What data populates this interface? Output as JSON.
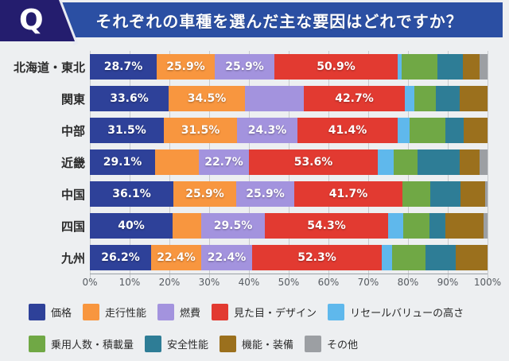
{
  "header": {
    "q_label": "Q",
    "title": "それぞれの車種を選んだ主な要因はどれですか？"
  },
  "chart_data": {
    "type": "bar",
    "variant": "horizontal-stacked-normalized",
    "title": "それぞれの車種を選んだ主な要因はどれですか？",
    "categories": [
      "北海道・東北",
      "関東",
      "中部",
      "近畿",
      "中国",
      "四国",
      "九州"
    ],
    "x_ticks": [
      "0%",
      "10%",
      "20%",
      "30%",
      "40%",
      "50%",
      "60%",
      "70%",
      "80%",
      "90%",
      "100%"
    ],
    "xlim": [
      0,
      100
    ],
    "grid": true,
    "legend_position": "bottom",
    "colors": {
      "price": "#2e4199",
      "performance": "#f8963f",
      "fuel": "#a393de",
      "design": "#e23a31",
      "resale": "#5fb8ec",
      "capacity": "#70a845",
      "safety": "#2e7d96",
      "features": "#9b701d",
      "other": "#9c9fa3"
    },
    "rows": [
      {
        "region": "北海道・東北",
        "segments": [
          {
            "key": "price",
            "label": "28.7%",
            "width": 16.8
          },
          {
            "key": "performance",
            "label": "25.9%",
            "width": 14.6
          },
          {
            "key": "fuel",
            "label": "25.9%",
            "width": 15.0
          },
          {
            "key": "design",
            "label": "50.9%",
            "width": 31.0
          },
          {
            "key": "resale",
            "label": "",
            "width": 1.0
          },
          {
            "key": "capacity",
            "label": "",
            "width": 9.0
          },
          {
            "key": "safety",
            "label": "",
            "width": 6.4
          },
          {
            "key": "features",
            "label": "",
            "width": 4.2
          },
          {
            "key": "other",
            "label": "",
            "width": 2.0
          }
        ]
      },
      {
        "region": "関東",
        "segments": [
          {
            "key": "price",
            "label": "33.6%",
            "width": 19.8
          },
          {
            "key": "performance",
            "label": "34.5%",
            "width": 19.2
          },
          {
            "key": "fuel",
            "label": "",
            "width": 14.8
          },
          {
            "key": "design",
            "label": "42.7%",
            "width": 25.4
          },
          {
            "key": "resale",
            "label": "",
            "width": 2.4
          },
          {
            "key": "capacity",
            "label": "",
            "width": 5.4
          },
          {
            "key": "safety",
            "label": "",
            "width": 6.0
          },
          {
            "key": "features",
            "label": "",
            "width": 7.0
          },
          {
            "key": "other",
            "label": "",
            "width": 0
          }
        ]
      },
      {
        "region": "中部",
        "segments": [
          {
            "key": "price",
            "label": "31.5%",
            "width": 18.6
          },
          {
            "key": "performance",
            "label": "31.5%",
            "width": 18.4
          },
          {
            "key": "fuel",
            "label": "24.3%",
            "width": 15.2
          },
          {
            "key": "design",
            "label": "41.4%",
            "width": 25.2
          },
          {
            "key": "resale",
            "label": "",
            "width": 3.0
          },
          {
            "key": "capacity",
            "label": "",
            "width": 9.0
          },
          {
            "key": "safety",
            "label": "",
            "width": 4.6
          },
          {
            "key": "features",
            "label": "",
            "width": 6.0
          },
          {
            "key": "other",
            "label": "",
            "width": 0
          }
        ]
      },
      {
        "region": "近畿",
        "segments": [
          {
            "key": "price",
            "label": "29.1%",
            "width": 16.4
          },
          {
            "key": "performance",
            "label": "",
            "width": 11.0
          },
          {
            "key": "fuel",
            "label": "22.7%",
            "width": 12.6
          },
          {
            "key": "design",
            "label": "53.6%",
            "width": 32.4
          },
          {
            "key": "resale",
            "label": "",
            "width": 4.0
          },
          {
            "key": "capacity",
            "label": "",
            "width": 6.0
          },
          {
            "key": "safety",
            "label": "",
            "width": 10.6
          },
          {
            "key": "features",
            "label": "",
            "width": 5.0
          },
          {
            "key": "other",
            "label": "",
            "width": 2.0
          }
        ]
      },
      {
        "region": "中国",
        "segments": [
          {
            "key": "price",
            "label": "36.1%",
            "width": 21.0
          },
          {
            "key": "performance",
            "label": "25.9%",
            "width": 15.8
          },
          {
            "key": "fuel",
            "label": "25.9%",
            "width": 14.6
          },
          {
            "key": "design",
            "label": "41.7%",
            "width": 27.2
          },
          {
            "key": "resale",
            "label": "",
            "width": 0
          },
          {
            "key": "capacity",
            "label": "",
            "width": 7.0
          },
          {
            "key": "safety",
            "label": "",
            "width": 7.6
          },
          {
            "key": "features",
            "label": "",
            "width": 6.2
          },
          {
            "key": "other",
            "label": "",
            "width": 0.6
          }
        ]
      },
      {
        "region": "四国",
        "segments": [
          {
            "key": "price",
            "label": "40%",
            "width": 20.8
          },
          {
            "key": "performance",
            "label": "",
            "width": 7.2
          },
          {
            "key": "fuel",
            "label": "29.5%",
            "width": 16.0
          },
          {
            "key": "design",
            "label": "54.3%",
            "width": 31.0
          },
          {
            "key": "resale",
            "label": "",
            "width": 3.8
          },
          {
            "key": "capacity",
            "label": "",
            "width": 6.6
          },
          {
            "key": "safety",
            "label": "",
            "width": 4.0
          },
          {
            "key": "features",
            "label": "",
            "width": 9.6
          },
          {
            "key": "other",
            "label": "",
            "width": 1.0
          }
        ]
      },
      {
        "region": "九州",
        "segments": [
          {
            "key": "price",
            "label": "26.2%",
            "width": 15.4
          },
          {
            "key": "performance",
            "label": "22.4%",
            "width": 12.6
          },
          {
            "key": "fuel",
            "label": "22.4%",
            "width": 12.8
          },
          {
            "key": "design",
            "label": "52.3%",
            "width": 32.6
          },
          {
            "key": "resale",
            "label": "",
            "width": 2.6
          },
          {
            "key": "capacity",
            "label": "",
            "width": 8.4
          },
          {
            "key": "safety",
            "label": "",
            "width": 7.6
          },
          {
            "key": "features",
            "label": "",
            "width": 8.0
          },
          {
            "key": "other",
            "label": "",
            "width": 0
          }
        ]
      }
    ]
  },
  "legend": {
    "rows": [
      [
        {
          "key": "price",
          "label": "価格"
        },
        {
          "key": "performance",
          "label": "走行性能"
        },
        {
          "key": "fuel",
          "label": "燃費"
        },
        {
          "key": "design",
          "label": "見た目・デザイン"
        },
        {
          "key": "resale",
          "label": "リセールバリューの高さ"
        }
      ],
      [
        {
          "key": "capacity",
          "label": "乗用人数・積載量"
        },
        {
          "key": "safety",
          "label": "安全性能"
        },
        {
          "key": "features",
          "label": "機能・装備"
        },
        {
          "key": "other",
          "label": "その他"
        }
      ]
    ]
  }
}
